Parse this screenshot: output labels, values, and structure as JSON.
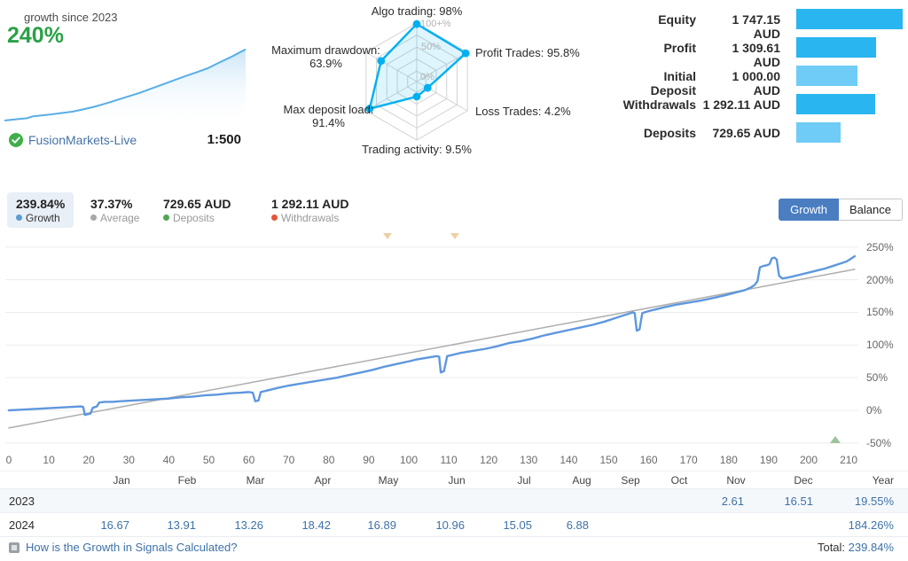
{
  "header": {
    "growth_since_label": "growth since 2023",
    "growth_value": "240%",
    "account_name": "FusionMarkets-Live",
    "leverage": "1:500",
    "badge_icon": "verified-check-icon",
    "accent_green": "#2aa147",
    "sparkline_color": "#56aee8"
  },
  "stats": {
    "items": [
      {
        "value": "239.84%",
        "label": "Growth",
        "dot_color": "#5b9bd5",
        "selected": true
      },
      {
        "value": "37.37%",
        "label": "Average",
        "dot_color": "#a8a8a8",
        "selected": false
      },
      {
        "value": "729.65 AUD",
        "label": "Deposits",
        "dot_color": "#53a653",
        "selected": false
      },
      {
        "value": "1 292.11 AUD",
        "label": "Withdrawals",
        "dot_color": "#e2573c",
        "selected": false
      }
    ],
    "buttons": [
      {
        "label": "Growth",
        "active": true
      },
      {
        "label": "Balance",
        "active": false
      }
    ]
  },
  "chart_data": [
    {
      "id": "sparkline",
      "type": "area",
      "title": "growth since 2023 mini chart",
      "color": "#56aee8",
      "x": [
        0,
        10,
        20,
        25,
        30,
        40,
        50,
        60,
        70,
        80,
        90,
        100,
        110,
        120,
        130,
        140,
        150,
        160,
        170,
        180,
        190,
        200,
        207,
        213
      ],
      "values": [
        0,
        4,
        8,
        14,
        16,
        20,
        25,
        30,
        38,
        47,
        58,
        70,
        82,
        94,
        108,
        122,
        136,
        150,
        163,
        177,
        196,
        214,
        228,
        240
      ],
      "ylim": [
        0,
        245
      ]
    },
    {
      "id": "radar",
      "type": "radar",
      "stroke": "#00b0f0",
      "fill": "rgba(0,176,240,0.13)",
      "ring_labels": [
        "100+%",
        "50%",
        "0%"
      ],
      "axes": [
        {
          "label": "Algo trading: 98%",
          "value": 98
        },
        {
          "label": "Profit Trades: 95.8%",
          "value": 95.8
        },
        {
          "label": "Loss Trades: 4.2%",
          "value": 4.2
        },
        {
          "label": "Trading activity: 9.5%",
          "value": 9.5
        },
        {
          "label": "Max deposit load: 91.4%",
          "value": 91.4
        },
        {
          "label": "Maximum drawdown: 63.9%",
          "value": 63.9
        }
      ]
    },
    {
      "id": "balance_bars",
      "type": "bar",
      "dark_color": "#29b5ef",
      "light_color": "#6fccf6",
      "max": 1747.15,
      "rows": [
        {
          "label": "Equity",
          "value_text": "1 747.15 AUD",
          "amount": 1747.15,
          "shade": "dark"
        },
        {
          "label": "Profit",
          "value_text": "1 309.61 AUD",
          "amount": 1309.61,
          "shade": "dark"
        },
        {
          "label": "Initial Deposit",
          "value_text": "1 000.00 AUD",
          "amount": 1000.0,
          "shade": "light"
        },
        {
          "label": "Withdrawals",
          "value_text": "1 292.11 AUD",
          "amount": 1292.11,
          "shade": "dark"
        },
        {
          "label": "Deposits",
          "value_text": "729.65 AUD",
          "amount": 729.65,
          "shade": "light"
        }
      ]
    },
    {
      "id": "growth_chart",
      "type": "line",
      "title": "Growth",
      "grid": true,
      "legend_position": "none",
      "xlim": [
        0,
        214
      ],
      "ylim": [
        -62,
        262
      ],
      "x_ticks": [
        0,
        10,
        20,
        30,
        40,
        50,
        60,
        70,
        80,
        90,
        100,
        110,
        120,
        130,
        140,
        150,
        160,
        170,
        180,
        190,
        200,
        210
      ],
      "y_ticks": [
        {
          "v": 250,
          "label": "250%"
        },
        {
          "v": 200,
          "label": "200%"
        },
        {
          "v": 150,
          "label": "150%"
        },
        {
          "v": 100,
          "label": "100%"
        },
        {
          "v": 50,
          "label": "50%"
        },
        {
          "v": 0,
          "label": "0%"
        },
        {
          "v": -50,
          "label": "-50%"
        }
      ],
      "series": [
        {
          "name": "Growth",
          "color": "#5e97dd",
          "width": 2.4,
          "points": [
            [
              0,
              0
            ],
            [
              3,
              1
            ],
            [
              6,
              2
            ],
            [
              9,
              3
            ],
            [
              12,
              4
            ],
            [
              15,
              5
            ],
            [
              18,
              6
            ],
            [
              18.6,
              5
            ],
            [
              19,
              -7
            ],
            [
              19.6,
              -6
            ],
            [
              20.4,
              -5
            ],
            [
              21,
              4
            ],
            [
              22,
              6
            ],
            [
              22.6,
              12
            ],
            [
              24,
              13
            ],
            [
              26,
              13
            ],
            [
              28,
              14
            ],
            [
              31,
              15
            ],
            [
              34,
              16
            ],
            [
              37,
              17
            ],
            [
              40,
              18
            ],
            [
              43,
              20
            ],
            [
              46,
              21
            ],
            [
              49,
              23
            ],
            [
              52,
              24
            ],
            [
              55,
              26
            ],
            [
              58,
              27
            ],
            [
              60,
              28
            ],
            [
              61,
              27
            ],
            [
              61.6,
              14
            ],
            [
              62.4,
              15
            ],
            [
              63,
              28
            ],
            [
              65,
              31
            ],
            [
              67,
              34
            ],
            [
              70,
              38
            ],
            [
              73,
              41
            ],
            [
              76,
              44
            ],
            [
              79,
              47
            ],
            [
              82,
              50
            ],
            [
              85,
              54
            ],
            [
              88,
              58
            ],
            [
              91,
              62
            ],
            [
              94,
              67
            ],
            [
              97,
              71
            ],
            [
              100,
              75
            ],
            [
              102,
              78
            ],
            [
              104,
              80
            ],
            [
              106,
              82
            ],
            [
              107,
              83
            ],
            [
              107.6,
              82
            ],
            [
              108,
              58
            ],
            [
              108.8,
              60
            ],
            [
              109.6,
              83
            ],
            [
              111,
              85
            ],
            [
              113,
              88
            ],
            [
              116,
              91
            ],
            [
              119,
              94
            ],
            [
              122,
              98
            ],
            [
              125,
              103
            ],
            [
              128,
              106
            ],
            [
              131,
              110
            ],
            [
              134,
              115
            ],
            [
              137,
              119
            ],
            [
              140,
              123
            ],
            [
              143,
              127
            ],
            [
              146,
              131
            ],
            [
              149,
              136
            ],
            [
              151,
              140
            ],
            [
              153,
              144
            ],
            [
              155,
              148
            ],
            [
              156,
              150
            ],
            [
              156.5,
              149
            ],
            [
              157,
              122
            ],
            [
              157.7,
              124
            ],
            [
              158.4,
              149
            ],
            [
              160,
              152
            ],
            [
              162,
              155
            ],
            [
              164,
              158
            ],
            [
              167,
              162
            ],
            [
              170,
              165
            ],
            [
              173,
              168
            ],
            [
              176,
              172
            ],
            [
              179,
              176
            ],
            [
              182,
              181
            ],
            [
              184,
              184
            ],
            [
              185.5,
              188
            ],
            [
              186.5,
              192
            ],
            [
              187.2,
              198
            ],
            [
              187.8,
              219
            ],
            [
              188.6,
              221
            ],
            [
              189.4,
              222
            ],
            [
              190.2,
              224
            ],
            [
              190.8,
              233
            ],
            [
              191.4,
              234
            ],
            [
              192,
              231
            ],
            [
              192.6,
              206
            ],
            [
              193.4,
              202
            ],
            [
              194.5,
              203
            ],
            [
              196,
              205
            ],
            [
              198,
              208
            ],
            [
              200,
              211
            ],
            [
              202,
              214
            ],
            [
              204,
              217
            ],
            [
              206,
              221
            ],
            [
              208,
              225
            ],
            [
              209.5,
              228
            ],
            [
              210.5,
              232
            ],
            [
              211.5,
              236
            ]
          ]
        },
        {
          "name": "Trend",
          "color": "#aeaeae",
          "width": 1.5,
          "points": [
            [
              0,
              -27
            ],
            [
              211.5,
              216
            ]
          ]
        }
      ],
      "markers": [
        {
          "icon": "event-marker-down-icon",
          "x": 94.7,
          "position": "top"
        },
        {
          "icon": "event-marker-down-icon",
          "x": 111.5,
          "position": "top"
        },
        {
          "icon": "event-marker-up-icon",
          "x": 206.4,
          "position": "bottom"
        }
      ]
    }
  ],
  "growth_table": {
    "columns": [
      "Jan",
      "Feb",
      "Mar",
      "Apr",
      "May",
      "Jun",
      "Jul",
      "Aug",
      "Sep",
      "Oct",
      "Nov",
      "Dec"
    ],
    "year_column": "Year",
    "rows": [
      {
        "year": "2023",
        "cells": [
          "",
          "",
          "",
          "",
          "",
          "",
          "",
          "",
          "",
          "",
          "2.61",
          "16.51"
        ],
        "year_total": "19.55%"
      },
      {
        "year": "2024",
        "cells": [
          "16.67",
          "13.91",
          "13.26",
          "18.42",
          "16.89",
          "10.96",
          "15.05",
          "6.88",
          "",
          "",
          "",
          ""
        ],
        "year_total": "184.26%"
      }
    ]
  },
  "footer": {
    "help_link": "How is the Growth in Signals Calculated?",
    "total_label": "Total:",
    "total_value": "239.84%"
  }
}
